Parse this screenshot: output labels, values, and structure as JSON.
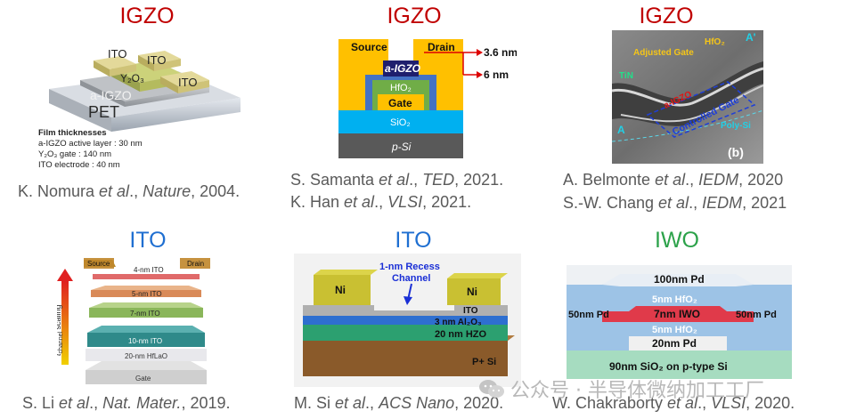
{
  "panels": [
    {
      "title": "IGZO",
      "cite_parts": [
        "K. Nomura ",
        "et al",
        ".,  ",
        "Nature",
        ", 2004."
      ]
    },
    {
      "title": "IGZO",
      "cite_lines": [
        [
          "S. Samanta ",
          "et al",
          ".,  ",
          "TED",
          ", 2021."
        ],
        [
          "K. Han ",
          "et al",
          ".,  ",
          "VLSI",
          ", 2021."
        ]
      ]
    },
    {
      "title": "IGZO",
      "cite_lines": [
        [
          "A. Belmonte ",
          "et al",
          ".,  ",
          "IEDM",
          ", 2020"
        ],
        [
          "S.-W. Chang ",
          "et al",
          ".,  ",
          "IEDM",
          ", 2021"
        ]
      ]
    },
    {
      "title": "ITO",
      "cite_parts": [
        "S. Li ",
        "et al",
        ".,  ",
        "Nat. Mater.",
        ", 2019."
      ]
    },
    {
      "title": "ITO",
      "cite_parts": [
        "M. Si ",
        "et al",
        ".,  ",
        "ACS Nano",
        ", 2020."
      ]
    },
    {
      "title": "IWO",
      "cite_parts": [
        "W. Chakraborty ",
        "et al",
        ".,  ",
        "VLSI",
        ", 2020."
      ]
    }
  ],
  "fig1": {
    "labels": {
      "ito1": "ITO",
      "ito2": "ITO",
      "ito3": "ITO",
      "y2o3": "Y₂O₃",
      "aigzo": "a-IGZO",
      "pet": "PET"
    },
    "film_title": "Film thicknesses",
    "film_lines": [
      "a-IGZO active layer : 30 nm",
      "Y₂O₃ gate : 140 nm",
      "ITO electrode : 40 nm"
    ]
  },
  "fig2": {
    "source": "Source",
    "drain": "Drain",
    "aigzo": "a-IGZO",
    "hfo2": "HfO₂",
    "gate": "Gate",
    "sio2": "SiO₂",
    "psi": "p-Si",
    "dim1": "3.6 nm",
    "dim2": "6 nm"
  },
  "fig3": {
    "adjusted_gate": "Adjusted Gate",
    "hfo2": "HfO₂",
    "tin": "TiN",
    "aigzo": "a-IGZO",
    "controlled_gate": "Controlled Gate",
    "polysi": "Poly-Si",
    "A": "A",
    "Aprime": "A'",
    "b": "(b)"
  },
  "fig4": {
    "source": "Source",
    "drain": "Drain",
    "l4": "4-nm ITO",
    "l5": "5-nm ITO",
    "l7": "7-nm ITO",
    "l10": "10-nm ITO",
    "hflao": "20-nm HfLaO",
    "gate": "Gate",
    "axis_sym": "t",
    "axis_sub": "channel",
    "axis_rest": " scaling"
  },
  "fig5": {
    "recess": "1-nm Recess",
    "channel": "Channel",
    "ni1": "Ni",
    "ni2": "Ni",
    "ito": "ITO",
    "al2o3": "3 nm Al₂O₃",
    "hzo": "20 nm HZO",
    "psi": "P+ Si"
  },
  "fig6": {
    "pd100": "100nm Pd",
    "hfo_top": "5nm HfO₂",
    "pd50l": "50nm Pd",
    "iwo": "7nm IWO",
    "pd50r": "50nm Pd",
    "hfo_bot": "5nm HfO₂",
    "pd20": "20nm Pd",
    "sio2": "90nm SiO₂  on p-type Si"
  },
  "watermark": "公众号 · 半导体微纳加工工厂",
  "colors": {
    "igzo": "#c00000",
    "ito": "#1f6fd1",
    "iwo": "#2ca24a",
    "cite": "#5a5a5a"
  }
}
